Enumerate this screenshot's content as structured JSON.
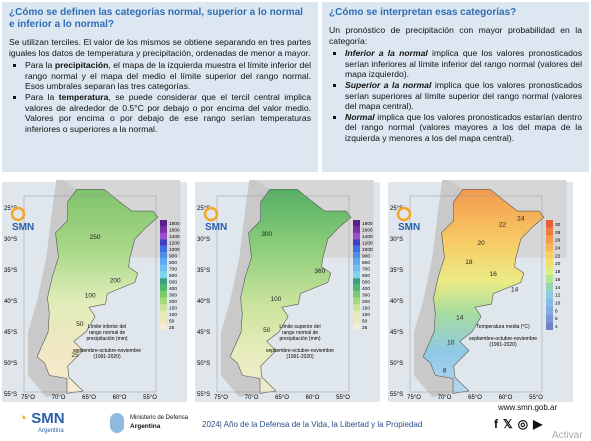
{
  "left_box": {
    "title": "¿Cómo se definen las categorías normal, superior a lo normal e inferior a lo normal?",
    "intro": "Se utilizan terciles. El valor de los mismos se obtiene separando en tres partes iguales los datos de temperatura y precipitación, ordenadas de menor a mayor.",
    "bullets": [
      {
        "pre": "Para la ",
        "bold": "precipitación",
        "post": ", el mapa de la izquierda muestra el límite inferior del rango normal y el mapa del medio el límite superior del rango normal. Esos umbrales separan las tres categorías."
      },
      {
        "pre": "Para la ",
        "bold": "temperatura",
        "post": ", se puede considerar que el tercil central implica valores de alrededor de 0.5°C por debajo o por encima del valor medio. Valores por encima o por debajo de ese rango serían temperaturas inferiores o superiores a la normal."
      }
    ]
  },
  "right_box": {
    "title": "¿Cómo se interpretan esas categorías?",
    "intro": "Un pronóstico de precipitación con mayor probabilidad en la categoría:",
    "bullets": [
      {
        "bold": "Inferior a la normal",
        "post": " implica que los valores pronosticados serían inferiores al límite inferior del rango normal (valores del mapa izquierdo)."
      },
      {
        "bold": "Superior a la normal",
        "post": " implica que los valores pronosticados serían superiores al límite superior del rango normal (valores del mapa central)."
      },
      {
        "bold": "Normal",
        "post": " implica que los valores pronosticados estarían dentro del rango normal (valores mayores a los del mapa de la izquierda y menores a los del mapa central)."
      }
    ]
  },
  "maps": [
    {
      "logo": "SMN",
      "caption": "Límite inferior del rango normal de precipitación (mm)",
      "period": "septiembre-octubre-noviembre (1991-2020)",
      "legend": [
        "1800",
        "1600",
        "1400",
        "1200",
        "1000",
        "900",
        "800",
        "700",
        "600",
        "500",
        "400",
        "300",
        "200",
        "150",
        "100",
        "50",
        "25"
      ],
      "contours": [
        "250",
        "200",
        "100",
        "50",
        "25"
      ]
    },
    {
      "logo": "SMN",
      "caption": "Límite superior del rango normal de precipitación (mm)",
      "period": "septiembre-octubre-noviembre (1991-2020)",
      "legend": [
        "1800",
        "1600",
        "1400",
        "1200",
        "1000",
        "900",
        "800",
        "700",
        "600",
        "500",
        "400",
        "300",
        "200",
        "150",
        "100",
        "50",
        "25"
      ],
      "contours": [
        "300",
        "360",
        "100",
        "50"
      ]
    },
    {
      "logo": "SMN",
      "caption": "Temperatura media (°C)",
      "period": "septiembre-octubre-noviembre (1991-2020)",
      "legend": [
        "30",
        "28",
        "26",
        "24",
        "22",
        "20",
        "18",
        "16",
        "14",
        "12",
        "10",
        "8",
        "6",
        "4"
      ],
      "contours": [
        "24",
        "22",
        "20",
        "18",
        "16",
        "14",
        "14",
        "10",
        "8"
      ]
    }
  ],
  "lat_labels": [
    "25°S",
    "30°S",
    "35°S",
    "40°S",
    "45°S",
    "50°S",
    "55°S"
  ],
  "lon_labels": [
    "75°O",
    "70°O",
    "65°O",
    "60°O",
    "55°O"
  ],
  "footer": {
    "logo": "SMN",
    "logo_sub": "Argentina",
    "ministry": "Ministerio de Defensa",
    "ministry_sub": "Argentina",
    "motto": "2024| Año de la Defensa de la Vida, la Libertad y la Propiedad",
    "url": "www.smn.gob.ar",
    "watermark": "Activar"
  }
}
